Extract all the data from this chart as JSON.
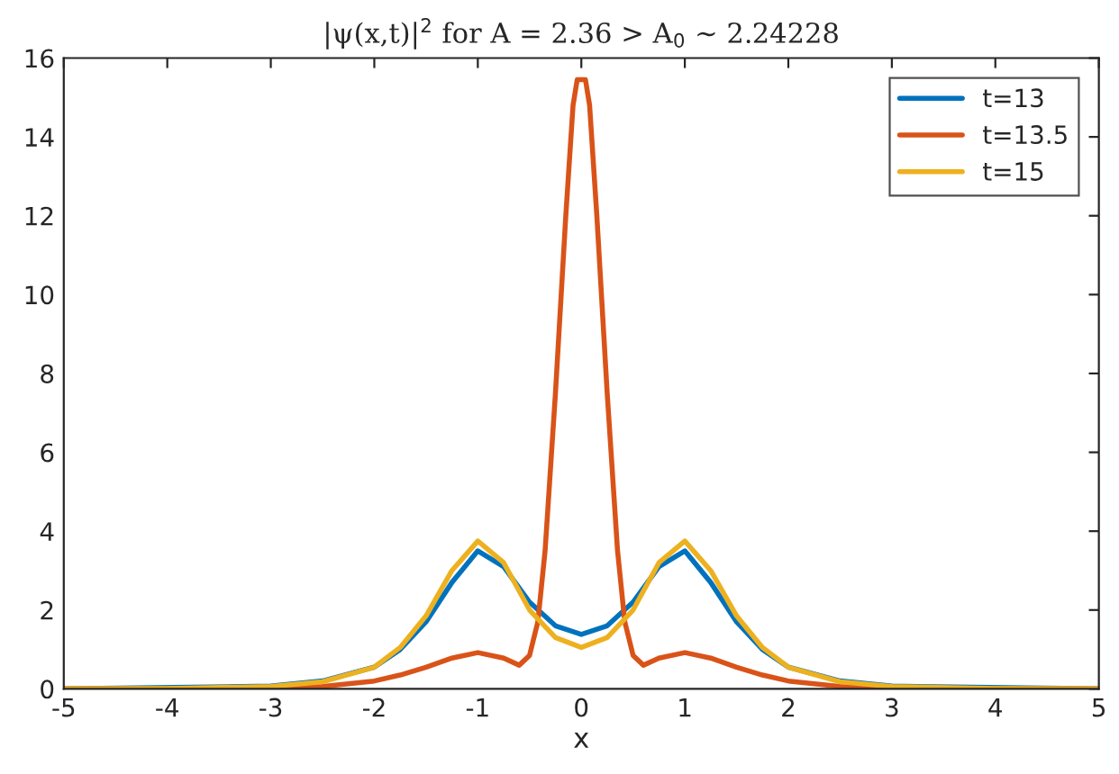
{
  "chart_data": {
    "type": "line",
    "title": "|ψ(x,t)|$^{2}$ for A = 2.36 > A$_{0}$ ∼ 2.24228",
    "xlabel": "x",
    "xlim": [
      -5,
      5
    ],
    "xticks": [
      -5,
      -4,
      -3,
      -2,
      -1,
      0,
      1,
      2,
      3,
      4,
      5
    ],
    "ylim": [
      0,
      16
    ],
    "yticks": [
      0,
      2,
      4,
      6,
      8,
      10,
      12,
      14,
      16
    ],
    "grid": false,
    "legend": "top right",
    "marker": "none",
    "line_style": "solid",
    "series": [
      {
        "name": "t=13",
        "color": "#0072bd",
        "x": [
          -5,
          -4,
          -3,
          -2.5,
          -2,
          -1.75,
          -1.5,
          -1.25,
          -1,
          -0.75,
          -0.5,
          -0.25,
          0,
          0.25,
          0.5,
          0.75,
          1,
          1.25,
          1.5,
          1.75,
          2,
          2.5,
          3,
          4,
          5
        ],
        "values": [
          0,
          null,
          0.07,
          0.2,
          0.55,
          1.0,
          1.7,
          2.7,
          3.5,
          3.1,
          2.2,
          1.6,
          1.38,
          1.6,
          2.2,
          3.1,
          3.5,
          2.7,
          1.7,
          1.0,
          0.55,
          0.2,
          0.07,
          null,
          0
        ]
      },
      {
        "name": "t=13.5",
        "color": "#d95319",
        "x": [
          -5,
          -4,
          -3,
          -2.5,
          -2,
          -1.75,
          -1.5,
          -1.25,
          -1,
          -0.75,
          -0.6,
          -0.5,
          -0.42,
          -0.35,
          -0.25,
          -0.15,
          -0.08,
          -0.04,
          0.04,
          0.08,
          0.15,
          0.25,
          0.35,
          0.42,
          0.5,
          0.6,
          0.75,
          1,
          1.25,
          1.5,
          1.75,
          2,
          2.5,
          3,
          4,
          5
        ],
        "values": [
          0,
          0,
          0.02,
          0.06,
          0.2,
          0.35,
          0.55,
          0.78,
          0.92,
          0.78,
          0.6,
          0.85,
          1.7,
          3.5,
          7.5,
          12.0,
          14.8,
          15.45,
          15.45,
          14.8,
          12.0,
          7.5,
          3.5,
          1.7,
          0.85,
          0.6,
          0.78,
          0.92,
          0.78,
          0.55,
          0.35,
          0.2,
          0.06,
          0.02,
          0,
          0
        ]
      },
      {
        "name": "t=15",
        "color": "#edb120",
        "x": [
          -5,
          -4,
          -3,
          -2.5,
          -2,
          -1.75,
          -1.5,
          -1.25,
          -1,
          -0.75,
          -0.5,
          -0.25,
          0,
          0.25,
          0.5,
          0.75,
          1,
          1.25,
          1.5,
          1.75,
          2,
          2.5,
          3,
          4,
          5
        ],
        "values": [
          0,
          0.01,
          0.06,
          0.18,
          0.55,
          1.05,
          1.85,
          3.0,
          3.75,
          3.2,
          2.0,
          1.3,
          1.05,
          1.3,
          2.0,
          3.2,
          3.75,
          3.0,
          1.85,
          1.05,
          0.55,
          0.18,
          0.06,
          0.01,
          0
        ]
      }
    ]
  }
}
